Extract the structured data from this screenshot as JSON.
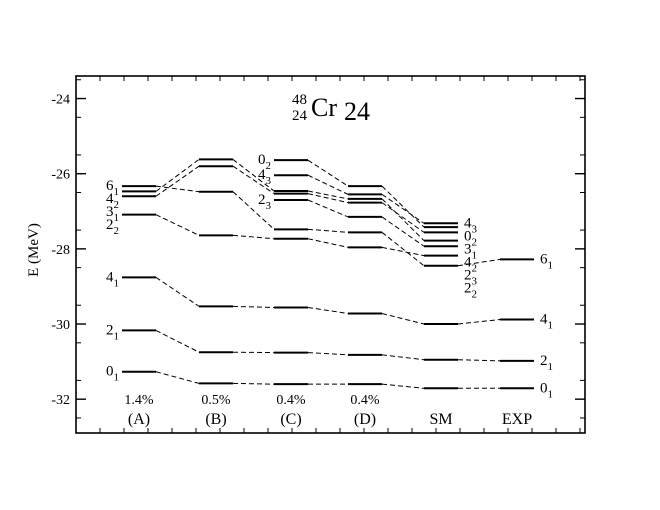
{
  "chart_data": {
    "type": "level-scheme",
    "title": {
      "mass_number": "48",
      "proton_number": "24",
      "symbol": "Cr",
      "neutron_number": "24"
    },
    "ylabel": "E (MeV)",
    "ylim": [
      -32.9,
      -23.4
    ],
    "yticks": [
      -32,
      -30,
      -28,
      -26,
      -24
    ],
    "grid": false,
    "columns": [
      {
        "id": "A",
        "label": "(A)",
        "percent": "1.4%"
      },
      {
        "id": "B",
        "label": "(B)",
        "percent": "0.5%"
      },
      {
        "id": "C",
        "label": "(C)",
        "percent": "0.4%"
      },
      {
        "id": "D",
        "label": "(D)",
        "percent": "0.4%"
      },
      {
        "id": "SM",
        "label": "SM",
        "percent": ""
      },
      {
        "id": "EXP",
        "label": "EXP",
        "percent": ""
      }
    ],
    "states": [
      {
        "name": "0_1",
        "J": "0",
        "n": "1",
        "energies": [
          -31.27,
          -31.58,
          -31.6,
          -31.6,
          -31.71,
          -31.71
        ]
      },
      {
        "name": "2_1",
        "J": "2",
        "n": "1",
        "energies": [
          -30.17,
          -30.75,
          -30.76,
          -30.82,
          -30.95,
          -30.98
        ]
      },
      {
        "name": "4_1",
        "J": "4",
        "n": "1",
        "energies": [
          -28.76,
          -29.53,
          -29.56,
          -29.72,
          -30.0,
          -29.88
        ]
      },
      {
        "name": "6_1",
        "J": "6",
        "n": "1",
        "energies": [
          -26.33,
          -26.48,
          -27.48,
          -27.56,
          -28.45,
          -28.28
        ]
      },
      {
        "name": "2_2",
        "J": "2",
        "n": "2",
        "energies": [
          -27.09,
          -27.64,
          -27.73,
          -27.96,
          -28.18,
          null
        ]
      },
      {
        "name": "3_1",
        "J": "3",
        "n": "1",
        "energies": [
          -26.6,
          -25.8,
          -26.53,
          -26.77,
          -27.56,
          null
        ]
      },
      {
        "name": "4_2",
        "J": "4",
        "n": "2",
        "energies": [
          -26.47,
          -25.62,
          -26.46,
          -26.67,
          -27.78,
          null
        ]
      },
      {
        "name": "2_3",
        "J": "2",
        "n": "3",
        "energies": [
          null,
          null,
          -26.7,
          -27.15,
          -27.93,
          null
        ]
      },
      {
        "name": "4_3",
        "J": "4",
        "n": "3",
        "energies": [
          null,
          null,
          -26.04,
          -26.55,
          -27.32,
          null
        ]
      },
      {
        "name": "0_2",
        "J": "0",
        "n": "2",
        "energies": [
          null,
          null,
          -25.64,
          -26.33,
          -27.42,
          null
        ]
      }
    ],
    "level_labels": [
      {
        "column": "A",
        "side": "left",
        "J": "6",
        "n": "1"
      },
      {
        "column": "A",
        "side": "left",
        "J": "4",
        "n": "2"
      },
      {
        "column": "A",
        "side": "left",
        "J": "3",
        "n": "1"
      },
      {
        "column": "A",
        "side": "left",
        "J": "2",
        "n": "2"
      },
      {
        "column": "A",
        "side": "left",
        "J": "4",
        "n": "1"
      },
      {
        "column": "A",
        "side": "left",
        "J": "2",
        "n": "1"
      },
      {
        "column": "A",
        "side": "left",
        "J": "0",
        "n": "1"
      },
      {
        "column": "C",
        "side": "left",
        "J": "0",
        "n": "2"
      },
      {
        "column": "C",
        "side": "left",
        "J": "4",
        "n": "3"
      },
      {
        "column": "C",
        "side": "left",
        "J": "2",
        "n": "3"
      },
      {
        "column": "SM",
        "side": "right",
        "J": "4",
        "n": "3"
      },
      {
        "column": "SM",
        "side": "right",
        "J": "0",
        "n": "2"
      },
      {
        "column": "SM",
        "side": "right",
        "J": "3",
        "n": "1"
      },
      {
        "column": "SM",
        "side": "right",
        "J": "4",
        "n": "2"
      },
      {
        "column": "SM",
        "side": "right",
        "J": "2",
        "n": "3"
      },
      {
        "column": "SM",
        "side": "right",
        "J": "2",
        "n": "2"
      },
      {
        "column": "EXP",
        "side": "right",
        "J": "6",
        "n": "1"
      },
      {
        "column": "EXP",
        "side": "right",
        "J": "4",
        "n": "1"
      },
      {
        "column": "EXP",
        "side": "right",
        "J": "2",
        "n": "1"
      },
      {
        "column": "EXP",
        "side": "right",
        "J": "0",
        "n": "1"
      }
    ]
  }
}
